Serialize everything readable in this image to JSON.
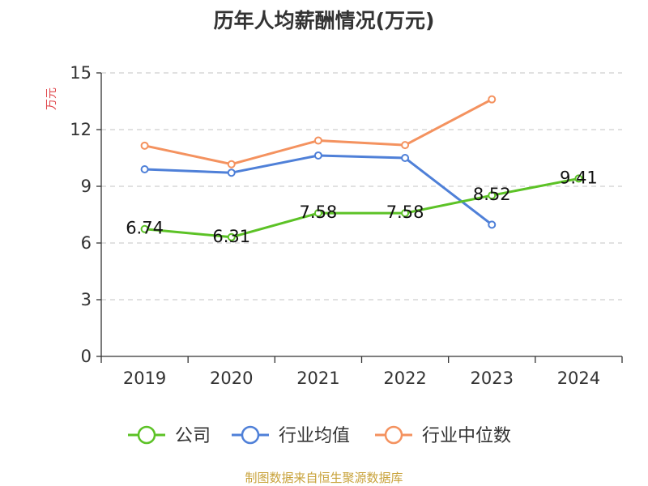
{
  "chart_data": {
    "type": "line",
    "title": "历年人均薪酬情况(万元)",
    "ylabel": "万元",
    "ylim": [
      0,
      15
    ],
    "yticks": [
      0,
      3,
      6,
      9,
      12,
      15
    ],
    "categories": [
      "2019",
      "2020",
      "2021",
      "2022",
      "2023",
      "2024"
    ],
    "grid": true,
    "legend_position": "bottom",
    "series": [
      {
        "name": "公司",
        "color": "#5cc226",
        "values": [
          6.74,
          6.31,
          7.58,
          7.58,
          8.52,
          9.41
        ],
        "labels": [
          "6.74",
          "6.31",
          "7.58",
          "7.58",
          "8.52",
          "9.41"
        ]
      },
      {
        "name": "行业均值",
        "color": "#4f80d8",
        "values": [
          9.9,
          9.72,
          10.63,
          10.5,
          6.97,
          null
        ]
      },
      {
        "name": "行业中位数",
        "color": "#f4925f",
        "values": [
          11.15,
          10.17,
          11.42,
          11.18,
          13.6,
          null
        ]
      }
    ]
  },
  "footer": {
    "source": "制图数据来自恒生聚源数据库"
  }
}
